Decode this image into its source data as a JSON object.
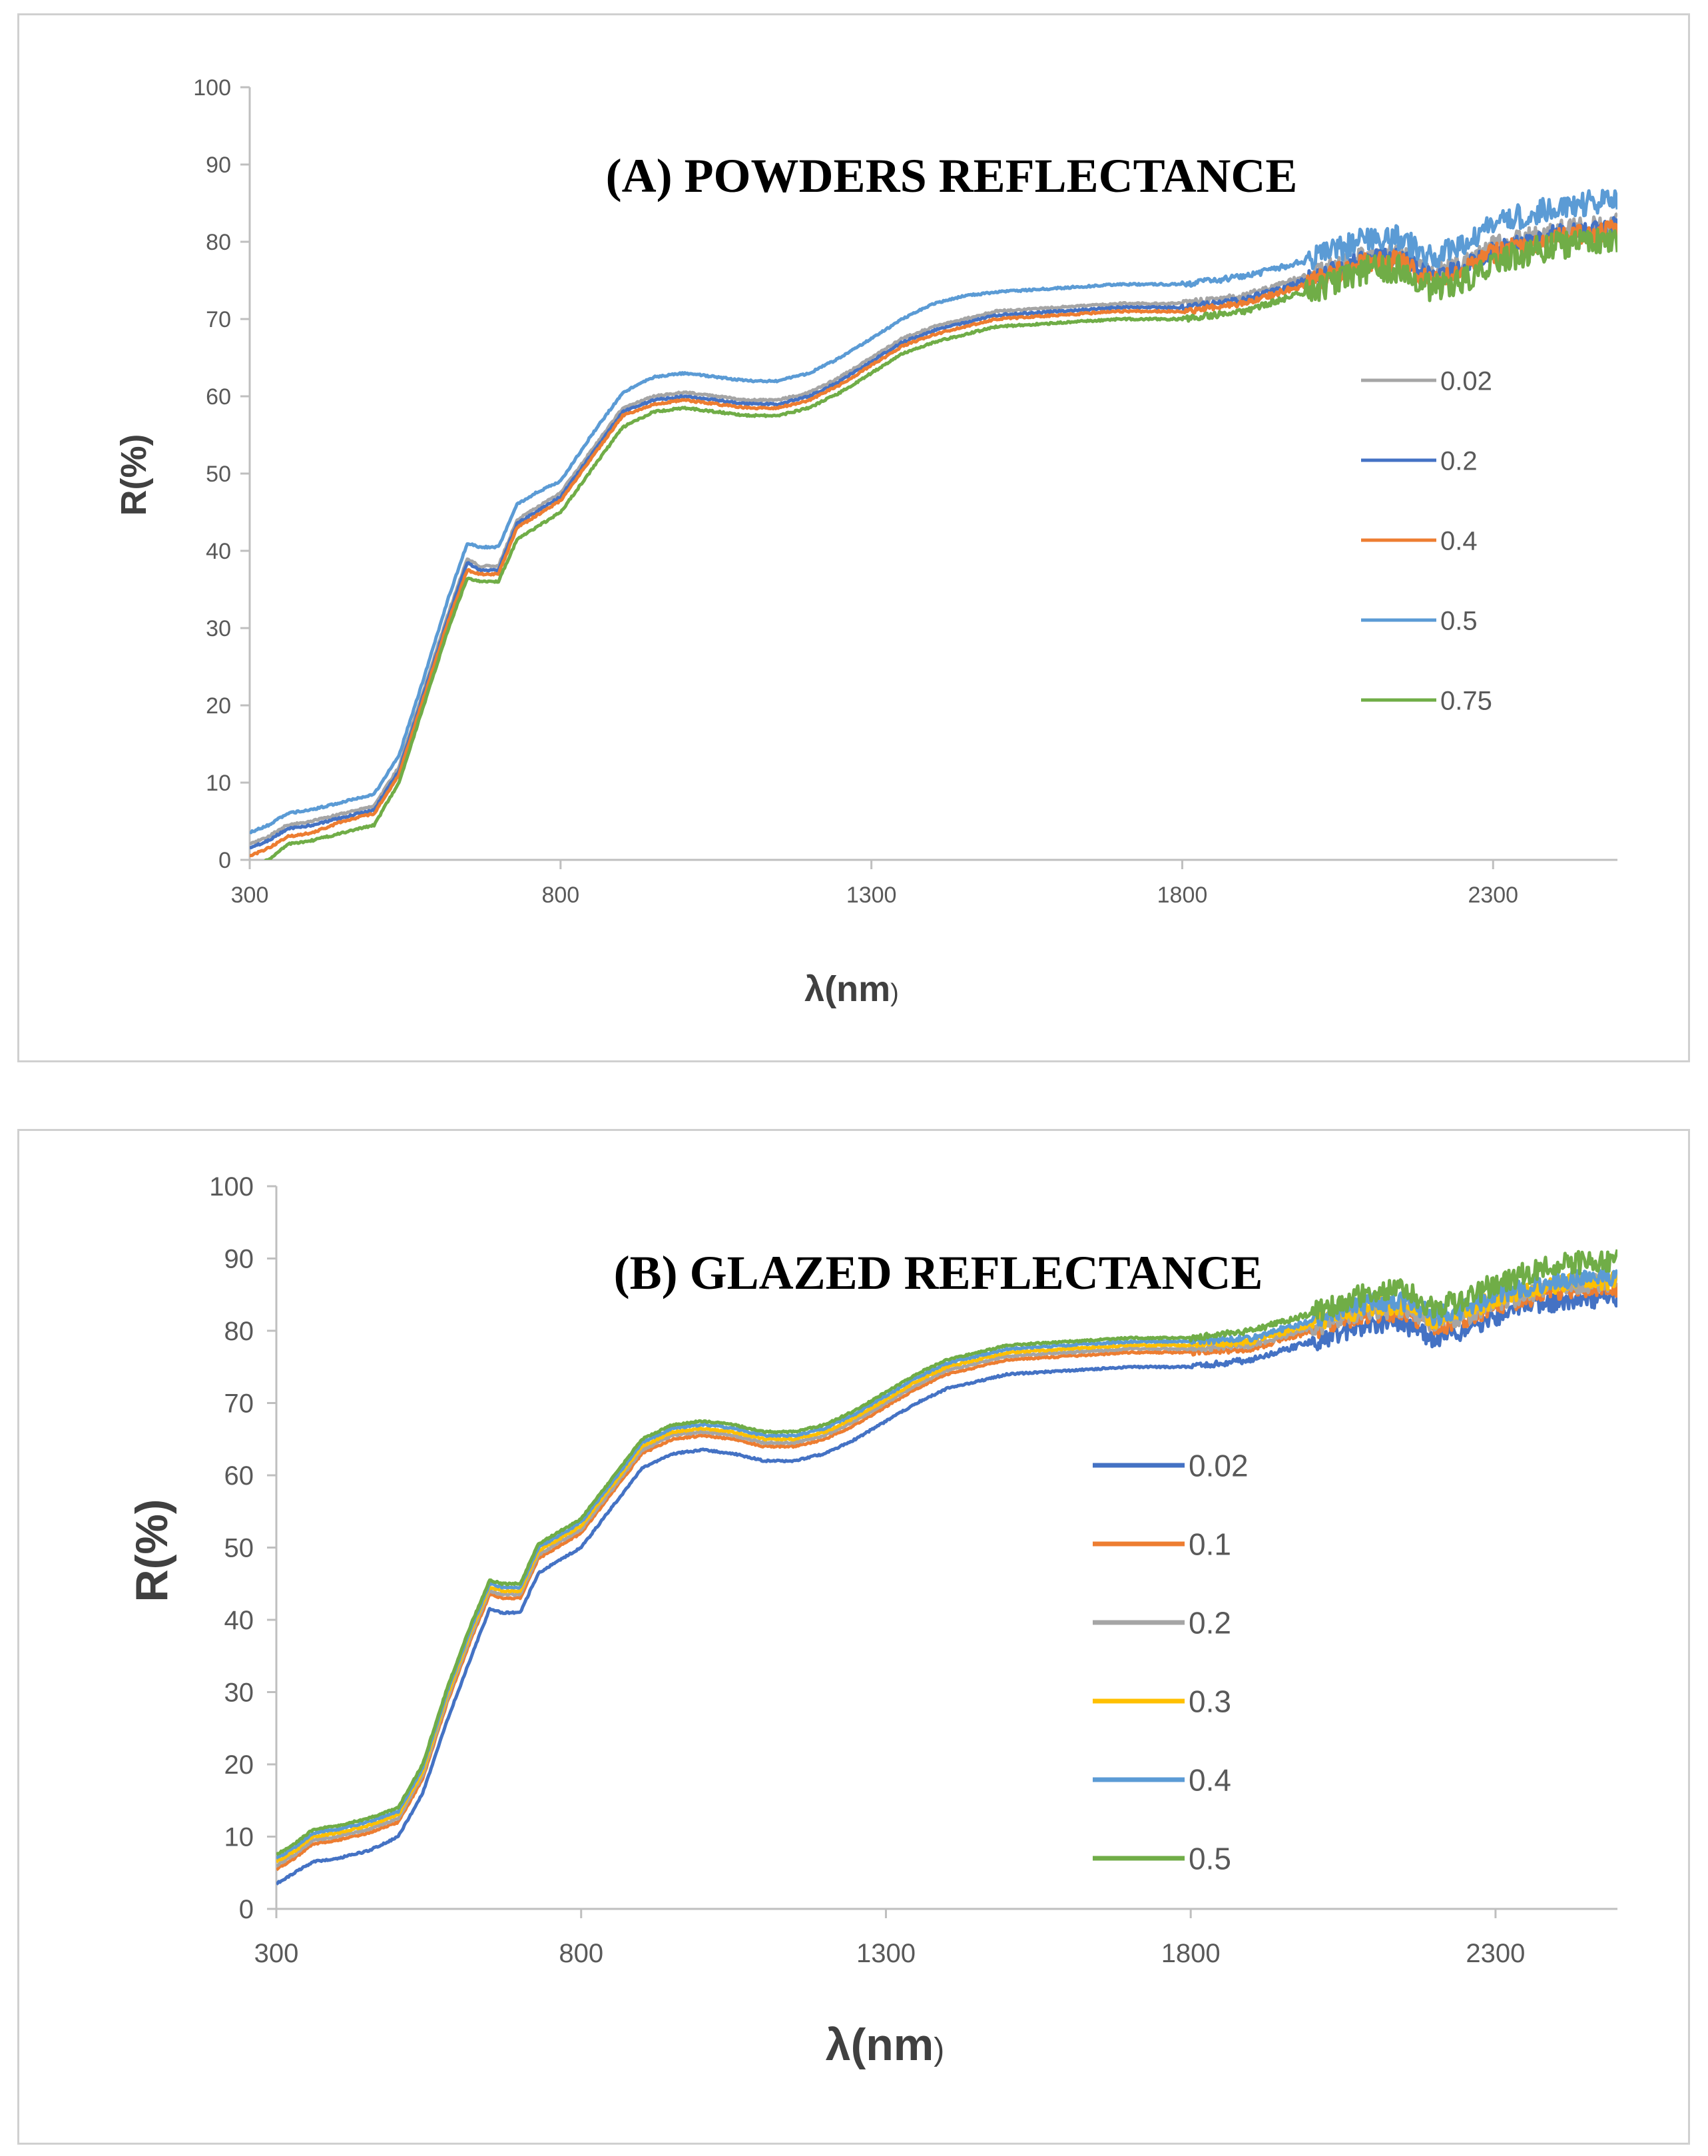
{
  "chart_data": [
    {
      "type": "line",
      "title": "(A) POWDERS REFLECTANCE",
      "xlabel": "λ(nm",
      "xlabel_suffix": ")",
      "ylabel": "R(%)",
      "xlim": [
        300,
        2500
      ],
      "ylim": [
        0,
        100
      ],
      "xticks": [
        300,
        800,
        1300,
        1800,
        2300
      ],
      "yticks": [
        0,
        10,
        20,
        30,
        40,
        50,
        60,
        70,
        80,
        90,
        100
      ],
      "legend_position": "right",
      "x": [
        300,
        330,
        360,
        400,
        450,
        500,
        540,
        580,
        620,
        650,
        670,
        700,
        730,
        760,
        800,
        850,
        900,
        950,
        1000,
        1050,
        1100,
        1150,
        1200,
        1250,
        1300,
        1350,
        1400,
        1450,
        1500,
        1600,
        1700,
        1800,
        1900,
        2000,
        2100,
        2150,
        2200,
        2250,
        2300,
        2350,
        2400,
        2450,
        2500
      ],
      "series": [
        {
          "name": "0.02",
          "color": "#A5A5A5",
          "noise": 1.2,
          "values": [
            2.0,
            3.0,
            4.5,
            5.0,
            6.0,
            7.0,
            12.0,
            22.0,
            32.0,
            39.0,
            38.0,
            38.0,
            44.0,
            45.5,
            47.5,
            53.0,
            58.5,
            60.0,
            60.5,
            60.0,
            59.5,
            59.5,
            60.5,
            62.5,
            65.0,
            67.5,
            69.0,
            70.0,
            71.0,
            71.5,
            72.0,
            72.0,
            73.0,
            75.5,
            78.5,
            78.5,
            76.0,
            77.0,
            79.5,
            80.5,
            81.5,
            82.0,
            82.5
          ]
        },
        {
          "name": "0.2",
          "color": "#4472C4",
          "noise": 1.2,
          "values": [
            1.5,
            2.5,
            4.0,
            4.5,
            5.5,
            6.5,
            11.5,
            21.5,
            31.5,
            38.5,
            37.5,
            37.5,
            43.5,
            45.0,
            47.0,
            52.5,
            58.0,
            59.5,
            60.0,
            59.5,
            59.0,
            59.0,
            60.0,
            62.0,
            64.5,
            67.0,
            68.5,
            69.5,
            70.5,
            71.0,
            71.5,
            71.5,
            72.5,
            75.0,
            78.0,
            78.0,
            75.5,
            76.5,
            79.0,
            80.0,
            81.0,
            81.5,
            82.0
          ]
        },
        {
          "name": "0.4",
          "color": "#ED7D31",
          "noise": 1.3,
          "values": [
            0.5,
            1.5,
            3.0,
            3.5,
            5.0,
            6.0,
            11.0,
            21.0,
            31.0,
            37.5,
            37.0,
            37.0,
            43.0,
            44.5,
            46.5,
            52.0,
            57.5,
            59.0,
            59.5,
            59.0,
            58.5,
            58.5,
            59.5,
            61.5,
            64.0,
            66.5,
            68.0,
            69.0,
            70.0,
            70.5,
            71.0,
            71.0,
            72.0,
            74.5,
            77.5,
            77.5,
            75.0,
            76.0,
            78.5,
            79.5,
            80.5,
            81.0,
            81.5
          ]
        },
        {
          "name": "0.5",
          "color": "#5B9BD5",
          "noise": 1.6,
          "values": [
            3.5,
            4.5,
            6.0,
            6.5,
            7.5,
            8.5,
            13.5,
            23.5,
            34.0,
            41.0,
            40.5,
            40.5,
            46.0,
            47.5,
            49.0,
            55.0,
            60.5,
            62.5,
            63.0,
            62.5,
            62.0,
            62.0,
            63.0,
            65.0,
            67.5,
            70.0,
            72.0,
            73.0,
            73.5,
            74.0,
            74.5,
            74.5,
            75.5,
            77.5,
            80.5,
            80.5,
            78.0,
            79.5,
            82.0,
            83.5,
            84.5,
            85.0,
            85.5
          ]
        },
        {
          "name": "0.75",
          "color": "#70AD47",
          "noise": 1.8,
          "values": [
            -1.0,
            0.0,
            2.0,
            2.5,
            3.5,
            4.5,
            10.0,
            20.0,
            30.0,
            36.5,
            36.0,
            36.0,
            41.5,
            43.0,
            45.0,
            50.5,
            56.0,
            58.0,
            58.5,
            58.0,
            57.5,
            57.5,
            58.5,
            60.5,
            63.0,
            65.5,
            67.0,
            68.0,
            69.0,
            69.5,
            70.0,
            70.0,
            71.0,
            73.5,
            76.5,
            76.5,
            74.0,
            75.0,
            77.5,
            78.5,
            79.5,
            80.0,
            80.0
          ]
        }
      ]
    },
    {
      "type": "line",
      "title": "(B) GLAZED REFLECTANCE",
      "xlabel": "λ(nm",
      "xlabel_suffix": ")",
      "ylabel": "R(%)",
      "xlim": [
        300,
        2500
      ],
      "ylim": [
        0,
        100
      ],
      "xticks": [
        300,
        800,
        1300,
        1800,
        2300
      ],
      "yticks": [
        0,
        10,
        20,
        30,
        40,
        50,
        60,
        70,
        80,
        90,
        100
      ],
      "legend_position": "right",
      "x": [
        300,
        330,
        360,
        400,
        450,
        500,
        540,
        580,
        620,
        650,
        670,
        700,
        730,
        760,
        800,
        850,
        900,
        950,
        1000,
        1050,
        1100,
        1150,
        1200,
        1250,
        1300,
        1350,
        1400,
        1450,
        1500,
        1600,
        1700,
        1800,
        1900,
        2000,
        2100,
        2150,
        2200,
        2250,
        2300,
        2350,
        2400,
        2450,
        2500
      ],
      "series": [
        {
          "name": "0.02",
          "color": "#4472C4",
          "noise": 1.4,
          "values": [
            3.5,
            5.0,
            6.5,
            7.0,
            8.0,
            10.0,
            16.0,
            26.0,
            35.0,
            41.5,
            41.0,
            41.0,
            46.5,
            48.0,
            50.0,
            55.5,
            61.0,
            63.0,
            63.5,
            63.0,
            62.0,
            62.0,
            63.0,
            65.0,
            67.5,
            70.0,
            72.0,
            73.0,
            74.0,
            74.5,
            75.0,
            75.0,
            76.0,
            78.5,
            81.0,
            81.0,
            79.0,
            80.0,
            82.0,
            83.5,
            84.0,
            84.5,
            84.5
          ]
        },
        {
          "name": "0.1",
          "color": "#ED7D31",
          "noise": 1.3,
          "values": [
            5.5,
            7.0,
            9.0,
            9.5,
            10.5,
            12.0,
            18.0,
            28.5,
            37.5,
            43.5,
            43.0,
            43.0,
            48.5,
            50.0,
            52.0,
            57.5,
            63.0,
            65.0,
            65.5,
            65.0,
            64.0,
            64.0,
            65.0,
            67.0,
            69.5,
            72.0,
            74.0,
            75.0,
            76.0,
            76.5,
            77.0,
            77.0,
            77.5,
            80.0,
            82.5,
            82.5,
            80.5,
            81.5,
            83.5,
            84.5,
            85.5,
            86.0,
            86.0
          ]
        },
        {
          "name": "0.2",
          "color": "#A5A5A5",
          "noise": 1.3,
          "values": [
            6.0,
            7.5,
            9.5,
            10.0,
            11.0,
            12.5,
            18.5,
            29.0,
            38.0,
            44.0,
            43.5,
            43.5,
            49.0,
            50.5,
            52.5,
            58.0,
            63.5,
            65.5,
            66.0,
            65.5,
            64.5,
            64.5,
            65.5,
            67.5,
            70.0,
            72.5,
            74.5,
            75.5,
            76.5,
            77.0,
            77.5,
            77.5,
            78.0,
            80.5,
            83.0,
            83.0,
            81.0,
            82.0,
            84.0,
            85.0,
            86.0,
            86.5,
            86.5
          ]
        },
        {
          "name": "0.3",
          "color": "#FFC000",
          "noise": 1.3,
          "values": [
            6.5,
            8.0,
            10.0,
            10.5,
            11.5,
            13.0,
            19.0,
            29.5,
            38.5,
            44.5,
            44.0,
            44.0,
            49.5,
            51.0,
            53.0,
            58.5,
            64.0,
            66.0,
            66.5,
            66.0,
            65.0,
            65.0,
            66.0,
            68.0,
            70.5,
            73.0,
            75.0,
            76.0,
            77.0,
            77.5,
            78.0,
            78.0,
            78.5,
            81.0,
            83.5,
            83.5,
            81.5,
            82.5,
            84.5,
            85.5,
            86.5,
            87.0,
            87.0
          ]
        },
        {
          "name": "0.4",
          "color": "#5B9BD5",
          "noise": 1.3,
          "values": [
            7.0,
            8.5,
            10.5,
            11.0,
            12.0,
            13.5,
            19.5,
            30.0,
            39.0,
            45.0,
            44.5,
            44.5,
            50.0,
            51.5,
            53.5,
            59.0,
            64.5,
            66.5,
            67.0,
            66.5,
            65.5,
            65.5,
            66.5,
            68.5,
            71.0,
            73.5,
            75.5,
            76.5,
            77.5,
            78.0,
            78.5,
            78.5,
            79.0,
            81.5,
            84.0,
            84.0,
            82.0,
            83.0,
            85.0,
            86.0,
            87.0,
            87.5,
            87.5
          ]
        },
        {
          "name": "0.5",
          "color": "#70AD47",
          "noise": 1.6,
          "values": [
            7.5,
            9.0,
            11.0,
            11.5,
            12.5,
            14.0,
            20.0,
            30.5,
            39.5,
            45.5,
            45.0,
            45.0,
            50.5,
            52.0,
            54.0,
            59.5,
            65.0,
            67.0,
            67.5,
            67.0,
            66.0,
            66.0,
            67.0,
            69.0,
            71.5,
            74.0,
            76.0,
            77.0,
            78.0,
            78.5,
            79.0,
            79.0,
            80.0,
            82.5,
            85.5,
            85.5,
            83.0,
            84.5,
            86.5,
            88.0,
            89.0,
            89.5,
            90.0
          ]
        }
      ]
    }
  ]
}
